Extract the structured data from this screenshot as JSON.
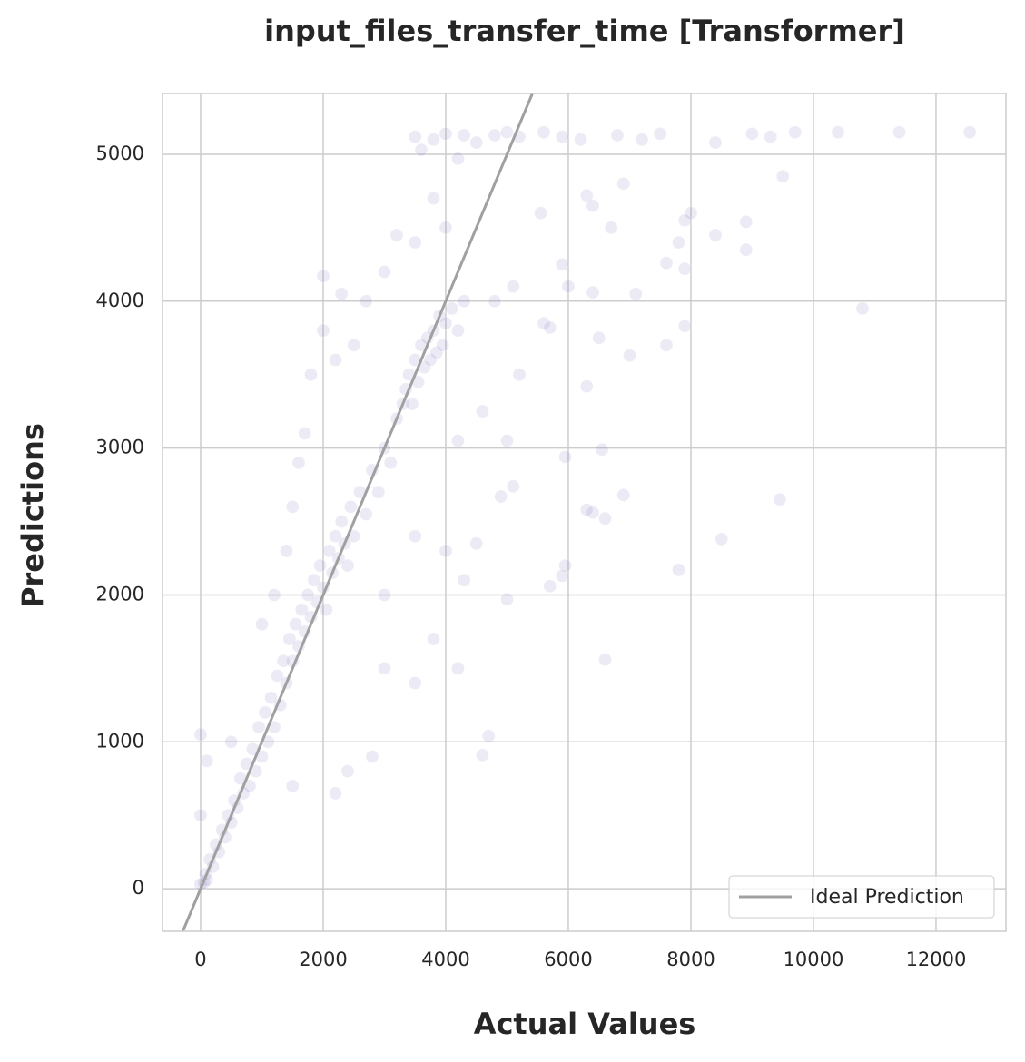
{
  "chart_data": {
    "type": "scatter",
    "title": "input_files_transfer_time [Transformer]",
    "xlabel": "Actual Values",
    "ylabel": "Predictions",
    "xlim": [
      -622,
      13141
    ],
    "ylim": [
      -290,
      5414
    ],
    "xticks": [
      0,
      2000,
      4000,
      6000,
      8000,
      10000,
      12000
    ],
    "yticks": [
      0,
      1000,
      2000,
      3000,
      4000,
      5000
    ],
    "grid": true,
    "legend": "lower right",
    "series": [
      {
        "color": "#7b68b5",
        "x": [
          0,
          50,
          80,
          100,
          150,
          200,
          250,
          300,
          350,
          400,
          450,
          500,
          550,
          600,
          650,
          700,
          750,
          800,
          850,
          900,
          950,
          1000,
          1050,
          1100,
          1150,
          1200,
          1250,
          1300,
          1350,
          1400,
          1450,
          1500,
          1550,
          1600,
          1650,
          1700,
          1750,
          1800,
          1850,
          1900,
          1950,
          2000,
          2050,
          2100,
          2150,
          2200,
          2250,
          2300,
          2350,
          2400,
          2450,
          2500,
          2600,
          2700,
          2800,
          2900,
          3000,
          3100,
          3200,
          3300,
          3350,
          3400,
          3450,
          3500,
          3550,
          3600,
          3650,
          3700,
          3750,
          3800,
          3850,
          3900,
          3950,
          4000,
          4100,
          4200,
          4300,
          1000,
          1200,
          1500,
          1700,
          1800,
          2000,
          2200,
          2500,
          2700,
          3000,
          3200,
          3500,
          3800,
          4000,
          2000,
          2300,
          1600,
          1400,
          0,
          100,
          0,
          500,
          1500,
          2200,
          2400,
          2800,
          3000,
          3500,
          3800,
          4200,
          4600,
          4700,
          3000,
          3500,
          4000,
          4300,
          4500,
          4200,
          4600,
          5000,
          5200,
          5600,
          6000,
          4800,
          5100,
          3500,
          3800,
          4000,
          4300,
          4500,
          4800,
          5000,
          5200,
          5600,
          5900,
          6200,
          6800,
          7200,
          7500,
          8400,
          9000,
          9300,
          9700,
          10400,
          11400,
          12550,
          3600,
          4200,
          6300,
          6400,
          6700,
          6900,
          7800,
          8000,
          7900,
          8400,
          8900,
          8900,
          9500,
          10800,
          7100,
          7600,
          7900,
          7600,
          7900,
          7000,
          6500,
          6300,
          6550,
          5950,
          6400,
          6300,
          6600,
          6900,
          5100,
          4900,
          8500,
          9450,
          7800,
          5950,
          5900,
          5700,
          6600,
          5000,
          5550,
          5900,
          6400,
          5700
        ],
        "values": [
          30,
          40,
          100,
          60,
          200,
          150,
          300,
          250,
          400,
          350,
          500,
          450,
          600,
          550,
          750,
          650,
          850,
          700,
          950,
          800,
          1100,
          900,
          1200,
          1000,
          1300,
          1100,
          1450,
          1250,
          1550,
          1400,
          1700,
          1550,
          1800,
          1650,
          1900,
          1750,
          2000,
          1850,
          2100,
          1950,
          2200,
          2050,
          1900,
          2300,
          2150,
          2400,
          2250,
          2500,
          2350,
          2200,
          2600,
          2400,
          2700,
          2550,
          2850,
          2700,
          3000,
          2900,
          3200,
          3300,
          3400,
          3500,
          3300,
          3600,
          3450,
          3700,
          3550,
          3750,
          3600,
          3800,
          3650,
          3900,
          3700,
          3850,
          3950,
          3800,
          4000,
          1800,
          2000,
          2600,
          3100,
          3500,
          3800,
          3600,
          3700,
          4000,
          4200,
          4450,
          4400,
          4700,
          4500,
          4170,
          4050,
          2900,
          2300,
          1050,
          870,
          500,
          1000,
          700,
          650,
          800,
          900,
          1500,
          1400,
          1700,
          1500,
          910,
          1040,
          2000,
          2400,
          2300,
          2100,
          2350,
          3050,
          3250,
          3050,
          3500,
          3850,
          4100,
          4000,
          4100,
          5120,
          5100,
          5140,
          5130,
          5080,
          5130,
          5150,
          5120,
          5150,
          5120,
          5100,
          5130,
          5100,
          5140,
          5080,
          5140,
          5120,
          5150,
          5150,
          5150,
          5150,
          5030,
          4970,
          4720,
          4650,
          4500,
          4800,
          4400,
          4600,
          4550,
          4450,
          4540,
          4350,
          4850,
          3950,
          4050,
          4260,
          4220,
          3700,
          3830,
          3630,
          3750,
          3420,
          2990,
          2940,
          2560,
          2580,
          2520,
          2680,
          2740,
          2670,
          2380,
          2650,
          2170,
          2200,
          2130,
          2060,
          1560,
          1970,
          4600,
          4250,
          4060,
          3820
        ]
      }
    ],
    "ideal_line": {
      "name": "Ideal Prediction",
      "color": "#a0a0a0",
      "x": [
        -290,
        5414
      ],
      "values": [
        -290,
        5414
      ]
    }
  }
}
